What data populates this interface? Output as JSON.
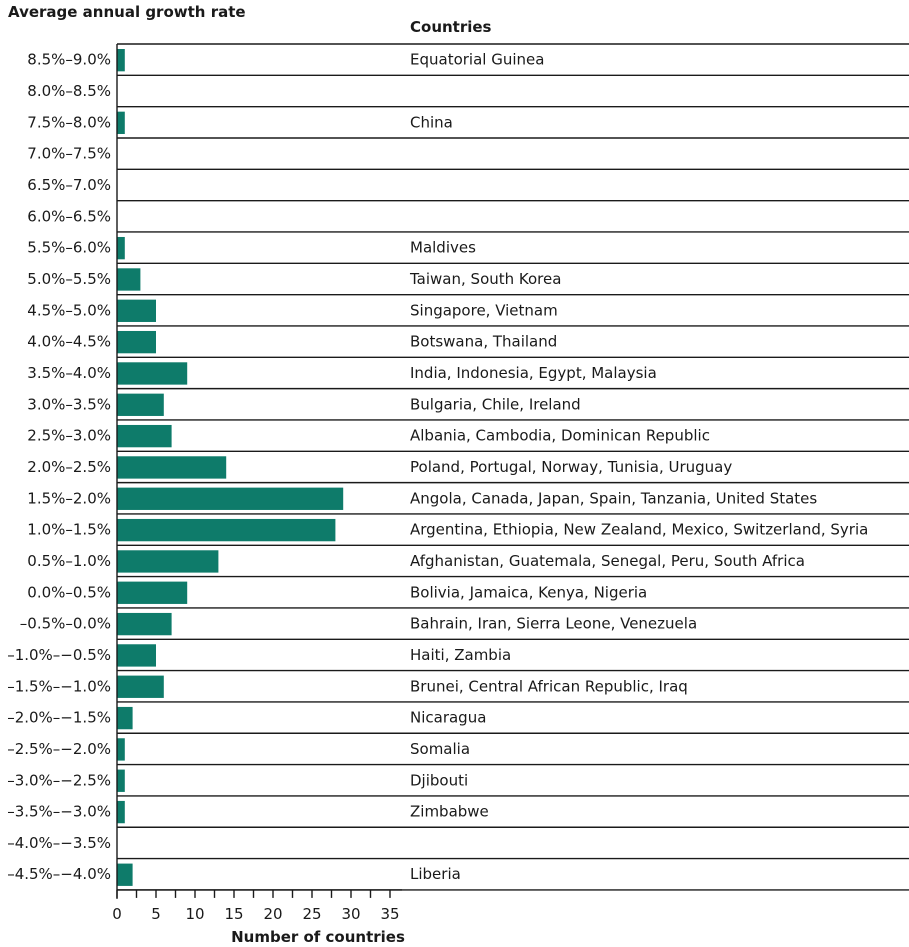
{
  "chart_data": {
    "type": "bar",
    "orientation": "horizontal",
    "title": "",
    "ylabel": "Average annual growth rate",
    "xlabel": "Number of countries",
    "countries_header": "Countries",
    "xlim": [
      0,
      35
    ],
    "xticks": [
      0,
      5,
      10,
      15,
      20,
      25,
      30,
      35
    ],
    "bar_color": "#0e7b6a",
    "rows": [
      {
        "range": "8.5%–9.0%",
        "count": 1,
        "countries": "Equatorial Guinea"
      },
      {
        "range": "8.0%–8.5%",
        "count": 0,
        "countries": ""
      },
      {
        "range": "7.5%–8.0%",
        "count": 1,
        "countries": "China"
      },
      {
        "range": "7.0%–7.5%",
        "count": 0,
        "countries": ""
      },
      {
        "range": "6.5%–7.0%",
        "count": 0,
        "countries": ""
      },
      {
        "range": "6.0%–6.5%",
        "count": 0,
        "countries": ""
      },
      {
        "range": "5.5%–6.0%",
        "count": 1,
        "countries": "Maldives"
      },
      {
        "range": "5.0%–5.5%",
        "count": 3,
        "countries": "Taiwan, South Korea"
      },
      {
        "range": "4.5%–5.0%",
        "count": 5,
        "countries": "Singapore, Vietnam"
      },
      {
        "range": "4.0%–4.5%",
        "count": 5,
        "countries": "Botswana, Thailand"
      },
      {
        "range": "3.5%–4.0%",
        "count": 9,
        "countries": "India, Indonesia, Egypt, Malaysia"
      },
      {
        "range": "3.0%–3.5%",
        "count": 6,
        "countries": "Bulgaria, Chile, Ireland"
      },
      {
        "range": "2.5%–3.0%",
        "count": 7,
        "countries": "Albania, Cambodia, Dominican Republic"
      },
      {
        "range": "2.0%–2.5%",
        "count": 14,
        "countries": "Poland, Portugal, Norway, Tunisia, Uruguay"
      },
      {
        "range": "1.5%–2.0%",
        "count": 29,
        "countries": "Angola, Canada, Japan, Spain, Tanzania, United States"
      },
      {
        "range": "1.0%–1.5%",
        "count": 28,
        "countries": "Argentina, Ethiopia, New Zealand, Mexico, Switzerland, Syria"
      },
      {
        "range": "0.5%–1.0%",
        "count": 13,
        "countries": "Afghanistan, Guatemala, Senegal, Peru, South Africa"
      },
      {
        "range": "0.0%–0.5%",
        "count": 9,
        "countries": "Bolivia, Jamaica, Kenya, Nigeria"
      },
      {
        "range": "–0.5%–0.0%",
        "count": 7,
        "countries": "Bahrain, Iran, Sierra Leone, Venezuela"
      },
      {
        "range": "–1.0%–−0.5%",
        "count": 5,
        "countries": "Haiti, Zambia"
      },
      {
        "range": "–1.5%–−1.0%",
        "count": 6,
        "countries": "Brunei, Central African Republic, Iraq"
      },
      {
        "range": "–2.0%–−1.5%",
        "count": 2,
        "countries": "Nicaragua"
      },
      {
        "range": "–2.5%–−2.0%",
        "count": 1,
        "countries": "Somalia"
      },
      {
        "range": "–3.0%–−2.5%",
        "count": 1,
        "countries": "Djibouti"
      },
      {
        "range": "–3.5%–−3.0%",
        "count": 1,
        "countries": "Zimbabwe"
      },
      {
        "range": "–4.0%–−3.5%",
        "count": 0,
        "countries": ""
      },
      {
        "range": "–4.5%–−4.0%",
        "count": 2,
        "countries": "Liberia"
      }
    ]
  }
}
